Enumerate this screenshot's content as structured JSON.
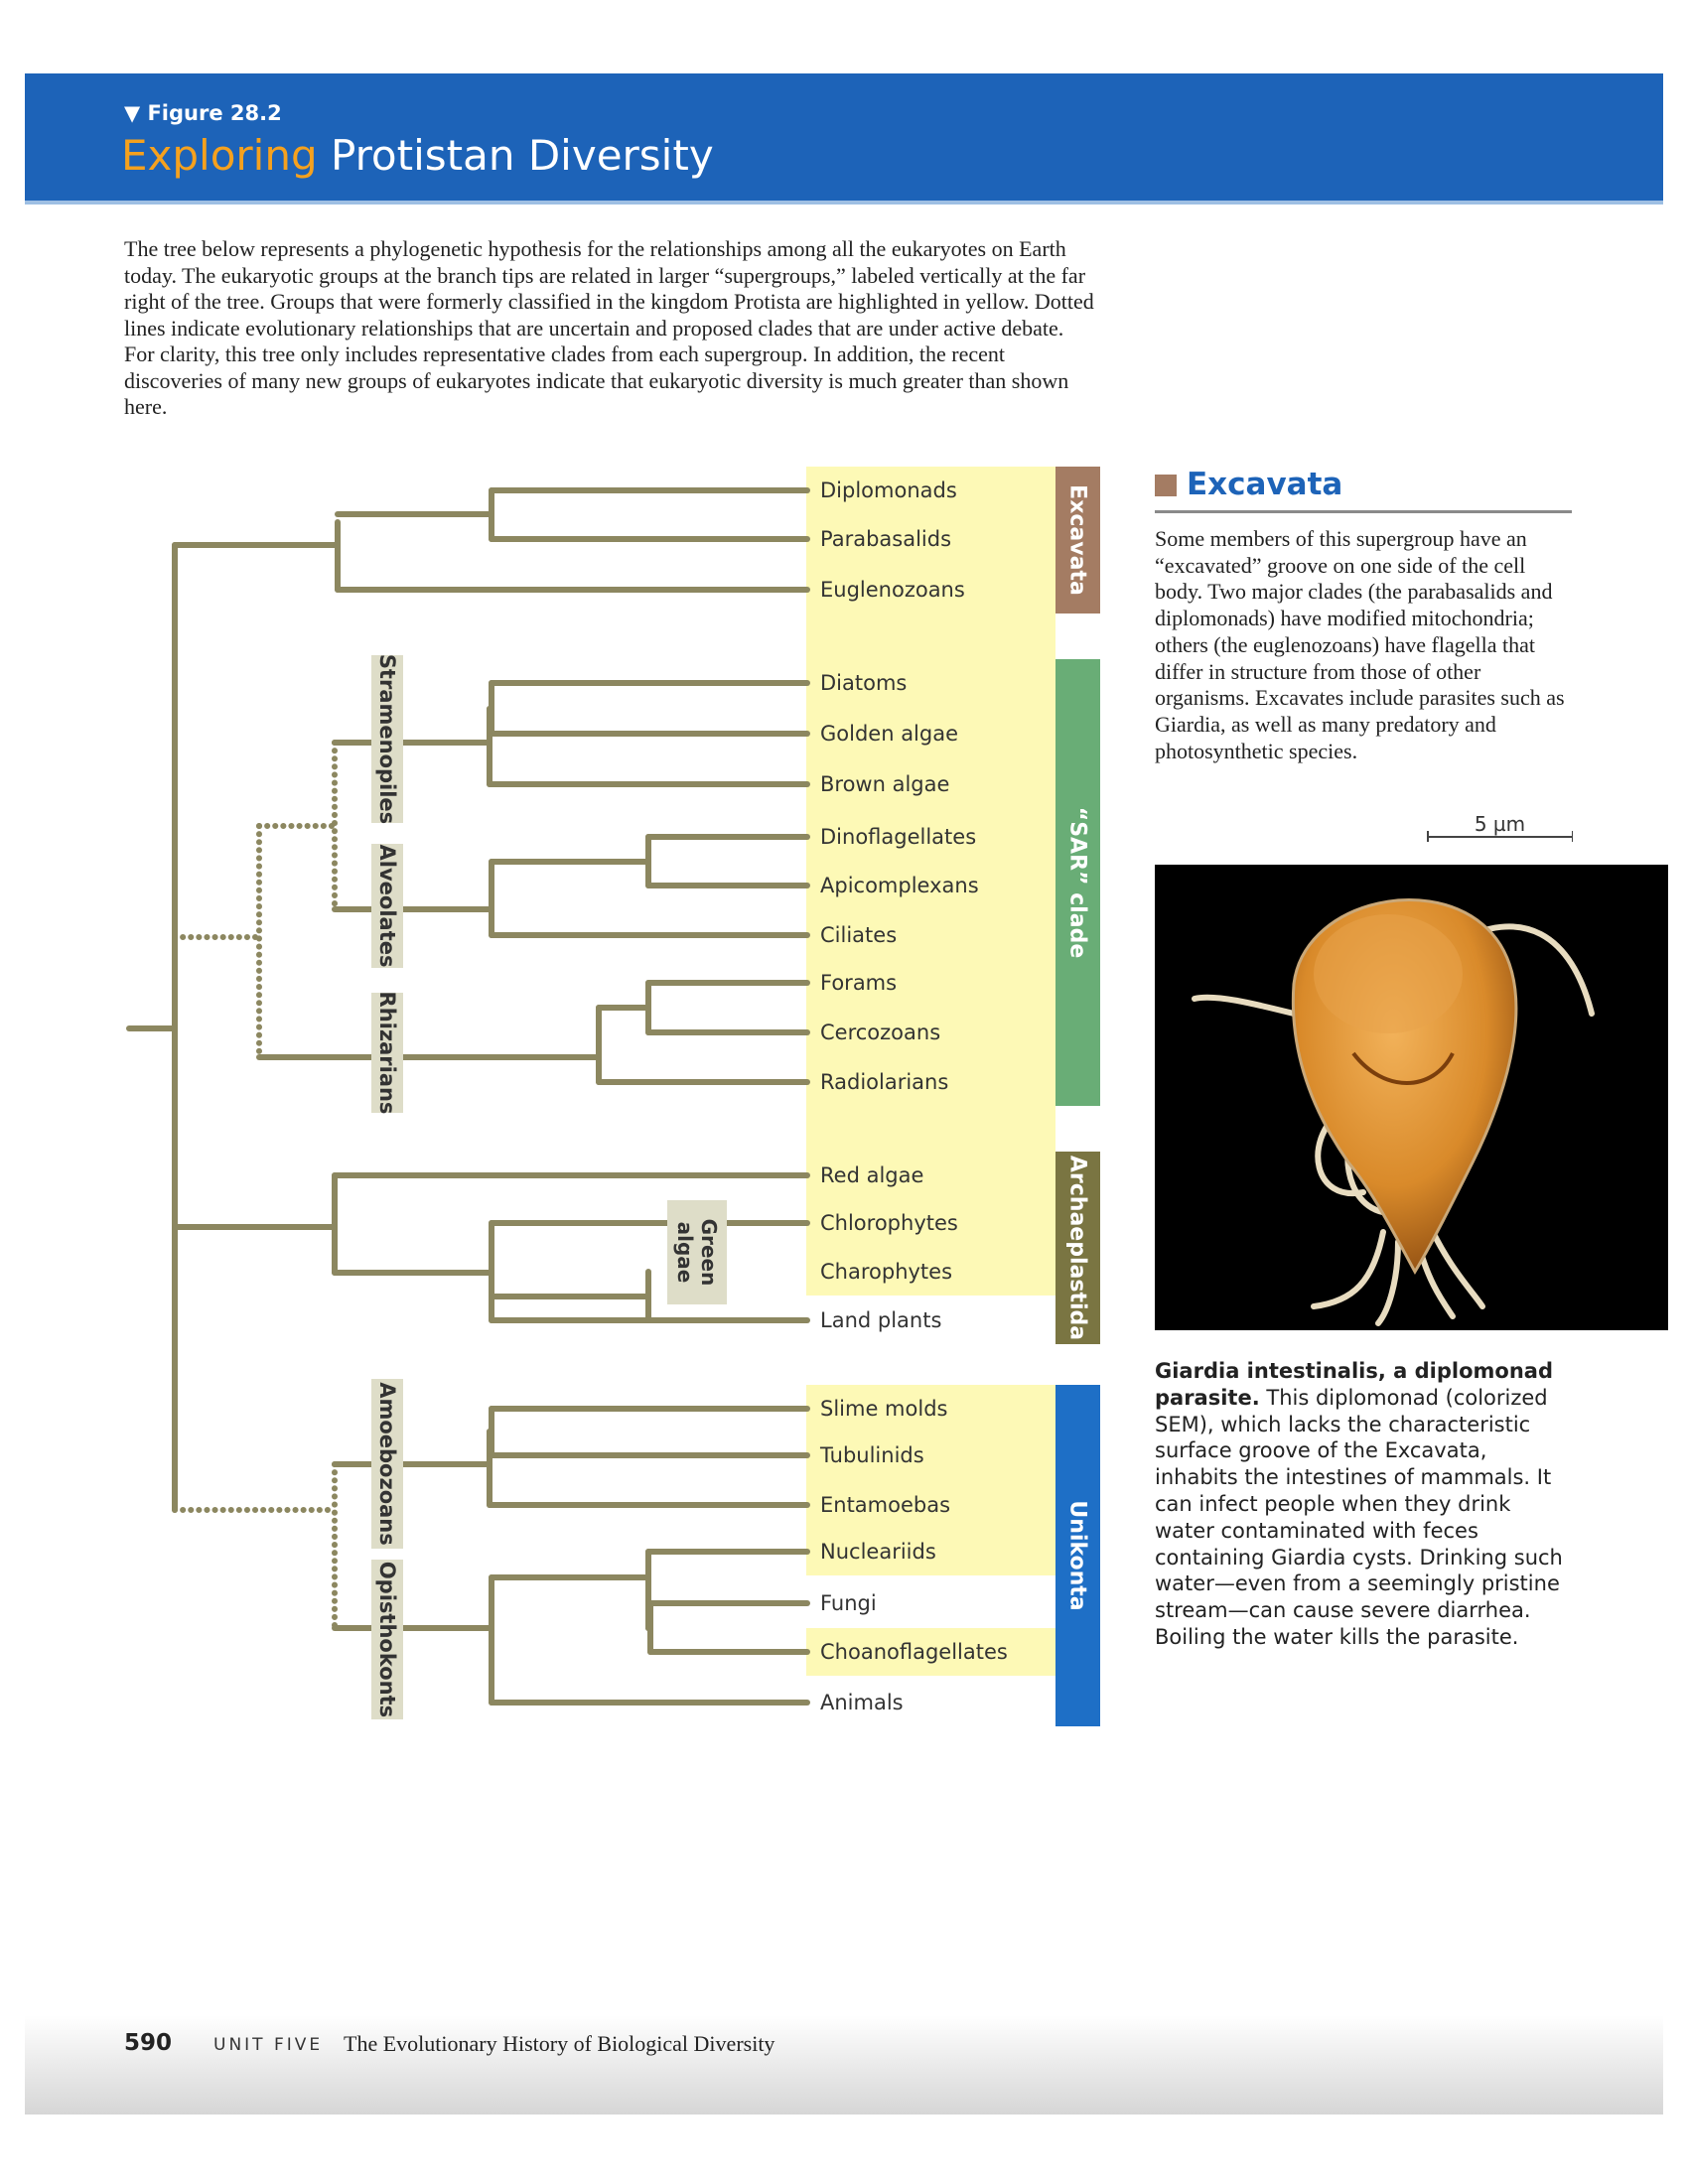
{
  "header": {
    "figure_label": "▼ Figure 28.2",
    "title_highlight": "Exploring",
    "title_rest": "Protistan Diversity"
  },
  "intro": "The tree below represents a phylogenetic hypothesis for the relationships among all the eukaryotes on Earth today. The eukaryotic groups at the branch tips are related in larger “supergroups,” labeled vertically at the far right of the tree. Groups that were formerly classified in the kingdom Protista are highlighted in yellow. Dotted lines indicate evolutionary relationships that are uncertain and proposed clades that are under active debate. For clarity, this tree only includes representative clades from each supergroup. In addition, the recent discoveries of many new groups of eukaryotes indicate that eukaryotic diversity is much greater than shown here.",
  "tree": {
    "tips": [
      "Diplomonads",
      "Parabasalids",
      "Euglenozoans",
      "Diatoms",
      "Golden algae",
      "Brown algae",
      "Dinoflagellates",
      "Apicomplexans",
      "Ciliates",
      "Forams",
      "Cercozoans",
      "Radiolarians",
      "Red algae",
      "Chlorophytes",
      "Charophytes",
      "Land plants",
      "Slime molds",
      "Tubulinids",
      "Entamoebas",
      "Nucleariids",
      "Fungi",
      "Choanoflagellates",
      "Animals"
    ],
    "protist_highlighted": [
      true,
      true,
      true,
      true,
      true,
      true,
      true,
      true,
      true,
      true,
      true,
      true,
      true,
      true,
      true,
      false,
      true,
      true,
      true,
      true,
      false,
      true,
      false
    ],
    "supergroups": [
      {
        "name": "Excavata",
        "color": "#a47c63"
      },
      {
        "name": "“SAR” clade",
        "color": "#69ad76"
      },
      {
        "name": "Archaeplastida",
        "color": "#7a7542"
      },
      {
        "name": "Unikonta",
        "color": "#1e6fc6"
      }
    ],
    "clade_labels": [
      "Stramenopiles",
      "Alveolates",
      "Rhizarians",
      "Green algae",
      "Amoebozoans",
      "Opisthokonts"
    ],
    "colors": {
      "branch": "#8c8760",
      "highlight": "#fdf9b6",
      "label_box": "#deddc8"
    }
  },
  "sidebar": {
    "heading": "Excavata",
    "text": "Some members of this supergroup have an “excavated” groove on one side of the cell body. Two major clades (the parabasalids and diplomonads) have modified mitochondria; others (the euglenozoans) have flagella that differ in structure from those of other organisms. Excavates include parasites such as Giardia, as well as many predatory and photosynthetic species.",
    "scale_label": "5 µm",
    "caption_bold": "Giardia intestinalis, a diplomonad parasite.",
    "caption_text": "This diplomonad (colorized SEM), which lacks the characteristic surface groove of the Excavata, inhabits the intestines of mammals. It can infect people when they drink water contaminated with feces containing Giardia cysts. Drinking such water—even from a seemingly pristine stream—can cause severe diarrhea. Boiling the water kills the parasite."
  },
  "footer": {
    "page_number": "590",
    "unit": "UNIT FIVE",
    "book_title": "The Evolutionary History of Biological Diversity"
  }
}
